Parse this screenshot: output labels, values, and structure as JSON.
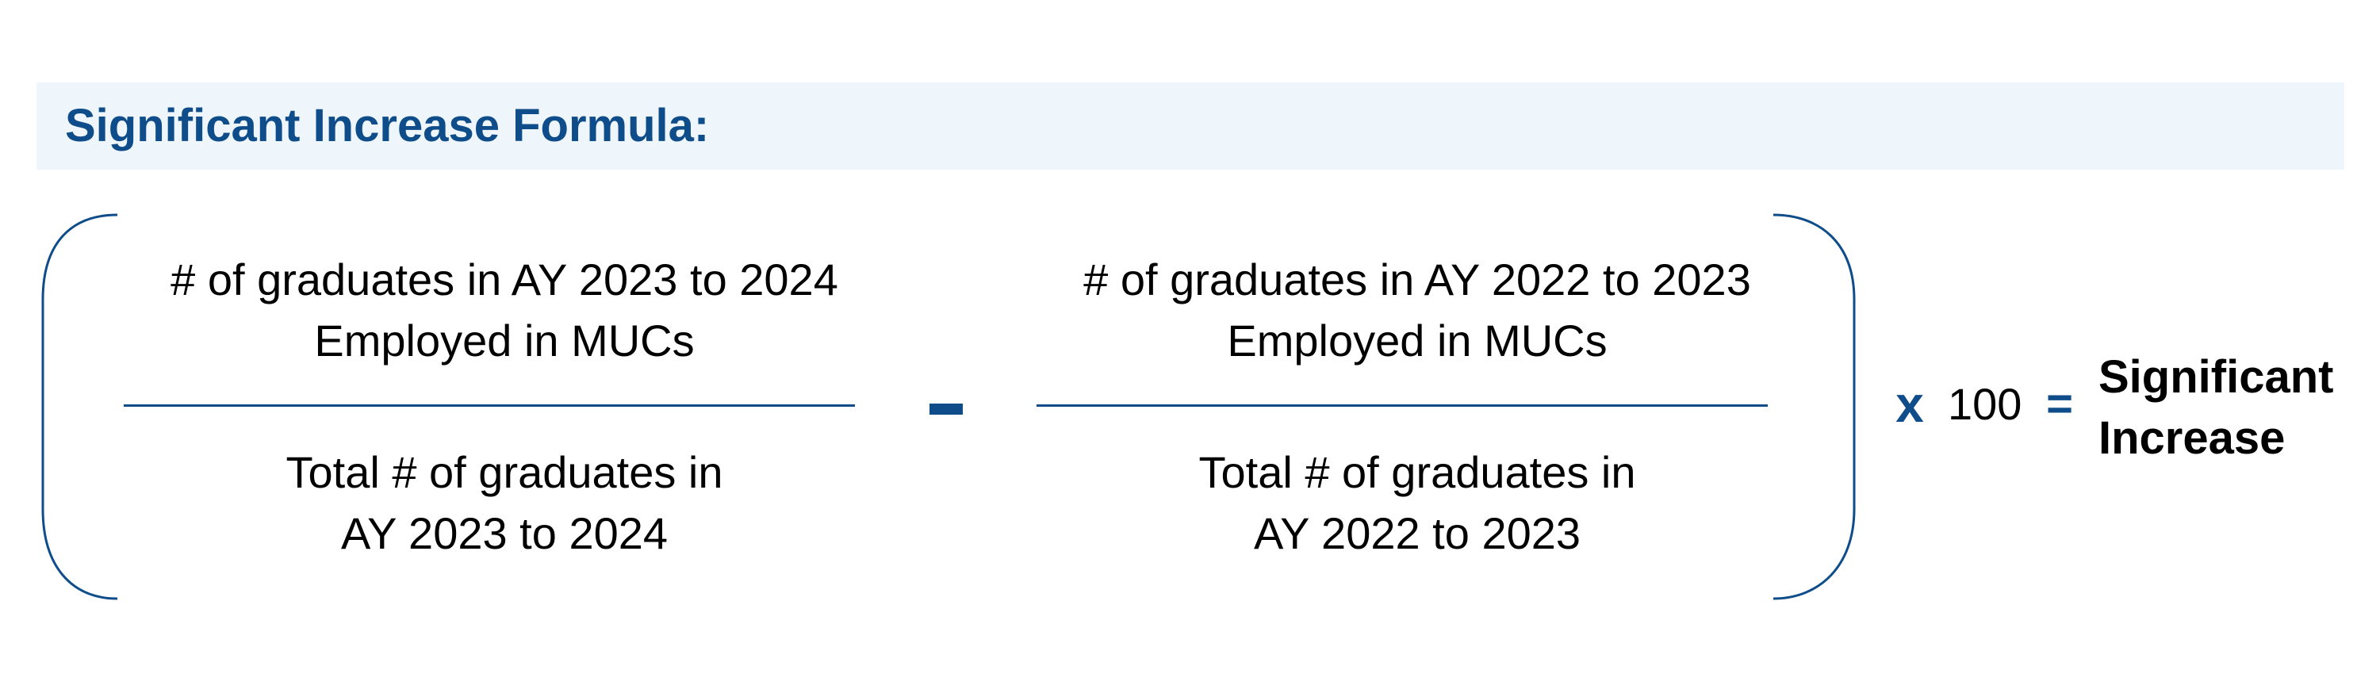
{
  "header": {
    "title": "Significant Increase Formula:"
  },
  "formula": {
    "left_fraction": {
      "numerator": [
        "# of graduates in AY 2023 to 2024",
        "Employed in MUCs"
      ],
      "denominator": [
        "Total # of graduates in",
        "AY 2023 to 2024"
      ]
    },
    "operator_minus": "-",
    "right_fraction": {
      "numerator": [
        "# of graduates in AY 2022 to 2023",
        "Employed in MUCs"
      ],
      "denominator": [
        "Total # of graduates in",
        "AY 2022 to 2023"
      ]
    },
    "multiply_symbol": "x",
    "multiplier": "100",
    "equals_symbol": "=",
    "result": [
      "Significant",
      "Increase"
    ]
  },
  "colors": {
    "accent": "#0f4c8a",
    "header_background": "#eef5fb",
    "text": "#000000"
  }
}
